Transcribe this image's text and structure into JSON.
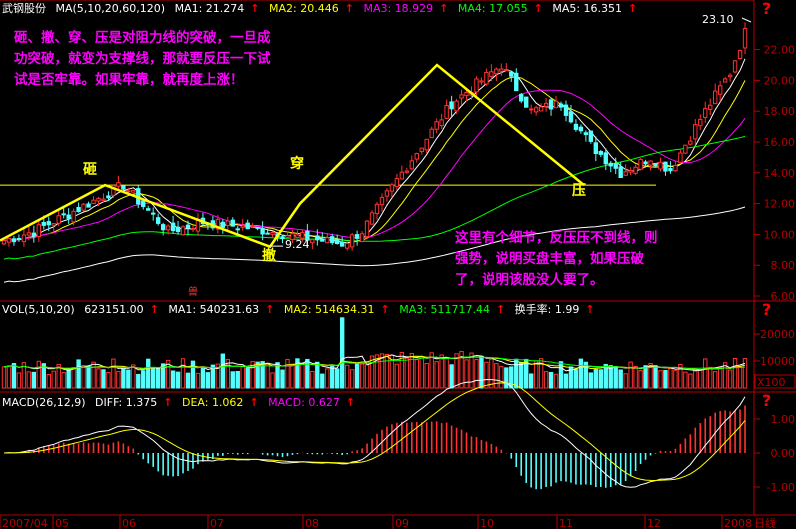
{
  "stock": "武钢股份",
  "header": {
    "price": {
      "title": "MA(5,10,20,60,120)",
      "items": [
        {
          "label": "MA1: 21.274",
          "color": "#ffffff"
        },
        {
          "label": "MA2: 20.446",
          "color": "#ffff00"
        },
        {
          "label": "MA3: 18.929",
          "color": "#ff00ff"
        },
        {
          "label": "MA4: 17.055",
          "color": "#00ff00"
        },
        {
          "label": "MA5: 16.351",
          "color": "#ffffff"
        }
      ]
    },
    "vol": {
      "title": "VOL(5,10,20)",
      "value": "623151.00",
      "items": [
        {
          "label": "MA1: 540231.63",
          "color": "#ffffff"
        },
        {
          "label": "MA2: 514634.31",
          "color": "#ffff00"
        },
        {
          "label": "MA3: 511717.44",
          "color": "#00ff00"
        },
        {
          "label": "换手率: 1.99",
          "color": "#ffffff"
        }
      ]
    },
    "macd": {
      "title": "MACD(26,12,9)",
      "items": [
        {
          "label": "DIFF: 1.375",
          "color": "#ffffff"
        },
        {
          "label": "DEA: 1.062",
          "color": "#ffff00"
        },
        {
          "label": "MACD: 0.627",
          "color": "#ff00ff"
        }
      ]
    }
  },
  "annotations": {
    "topleft": "砸、撤、穿、压是对阻力线的突破，一旦成\n功突破，就变为支撑线，那就要反压一下试\n试是否牢靠。如果牢靠，就再度上涨！",
    "right": "这里有个细节，反压压不到线，则\n强势，说明买盘丰富，如果压破\n了，说明该股没人要了。",
    "labels": {
      "za": "砸",
      "che": "撤",
      "chuan": "穿",
      "ya": "压"
    },
    "high_label": "23.10",
    "low_label": "9.24",
    "mark": "兽"
  },
  "x_axis": [
    "2007/04",
    "05",
    "06",
    "07",
    "08",
    "09",
    "10",
    "11",
    "12",
    "2008",
    "日线"
  ],
  "y_axis_price": [
    "22.00",
    "20.00",
    "18.00",
    "16.00",
    "14.00",
    "12.00",
    "10.00",
    "8.00",
    "6.00"
  ],
  "y_axis_vol": [
    "20000",
    "10000",
    "X100"
  ],
  "y_axis_macd": [
    "1.00",
    "0.00",
    "-1.00"
  ],
  "colors": {
    "up": "#ff3232",
    "down": "#54ffff",
    "axis": "#b40000",
    "trend": "#ffff00",
    "label": "#ff00ff"
  },
  "chart_data": [
    {
      "type": "candlestick",
      "title": "武钢股份 日线",
      "ylim": [
        6,
        24
      ],
      "key_points": [
        {
          "label": "砸",
          "x": "2007/05",
          "y": 13.2
        },
        {
          "label": "撤",
          "x": "2007/07",
          "y": 9.24
        },
        {
          "label": "穿",
          "x": "2007/08",
          "y": 14.0
        },
        {
          "label": "high",
          "x": "2007/09",
          "y": 21.0
        },
        {
          "label": "压",
          "x": "2007/11",
          "y": 13.3
        },
        {
          "label": "last",
          "x": "2008/01",
          "y": 23.1
        }
      ],
      "resistance_line": 13.2,
      "moving_averages": [
        "MA5",
        "MA10",
        "MA20",
        "MA60",
        "MA120"
      ]
    },
    {
      "type": "bar",
      "title": "VOL(5,10,20)",
      "unit": "X100",
      "ylim": [
        0,
        28000
      ]
    },
    {
      "type": "line",
      "title": "MACD(26,12,9)",
      "series": [
        {
          "name": "DIFF"
        },
        {
          "name": "DEA"
        },
        {
          "name": "MACD"
        }
      ],
      "ylim": [
        -1.6,
        1.6
      ]
    }
  ]
}
